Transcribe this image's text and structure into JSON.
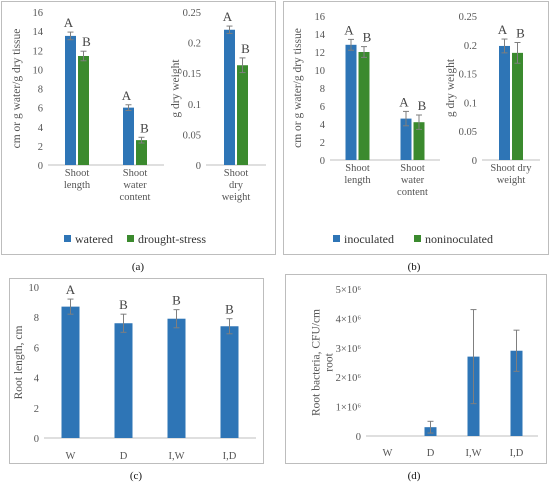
{
  "panel_labels": [
    "(a)",
    "(b)",
    "(c)",
    "(d)"
  ],
  "colors": {
    "blue": "#2e75b6",
    "green": "#3b8a2e",
    "axis": "#bfbfbf",
    "err": "#7f7f7f"
  },
  "chart_data": [
    {
      "id": "a-left",
      "type": "bar",
      "ylabel": "cm or g water/g dry tissue",
      "ylim": [
        0,
        16
      ],
      "yticks": [
        "0",
        "2",
        "4",
        "6",
        "8",
        "10",
        "12",
        "14",
        "16"
      ],
      "categories": [
        [
          "Shoot",
          "length"
        ],
        [
          "Shoot",
          "water",
          "content"
        ]
      ],
      "series": [
        {
          "name": "watered",
          "values": [
            13.5,
            6.0
          ],
          "errors": [
            0.4,
            0.3
          ],
          "letters": [
            "A",
            "A"
          ]
        },
        {
          "name": "drought-stress",
          "values": [
            11.4,
            2.6
          ],
          "errors": [
            0.5,
            0.3
          ],
          "letters": [
            "B",
            "B"
          ]
        }
      ]
    },
    {
      "id": "a-right",
      "type": "bar",
      "ylabel": "g dry weight",
      "ylim": [
        0,
        0.25
      ],
      "yticks": [
        "0",
        "0.05",
        "0.1",
        "0.15",
        "0.2",
        "0.25"
      ],
      "categories": [
        [
          "Shoot",
          "dry",
          "weight"
        ]
      ],
      "series": [
        {
          "name": "watered",
          "values": [
            0.221
          ],
          "errors": [
            0.006
          ],
          "letters": [
            "A"
          ]
        },
        {
          "name": "drought-stress",
          "values": [
            0.163
          ],
          "errors": [
            0.012
          ],
          "letters": [
            "B"
          ]
        }
      ]
    },
    {
      "id": "b-left",
      "type": "bar",
      "ylabel": "cm or g water/g dry tissue",
      "ylim": [
        0,
        16
      ],
      "yticks": [
        "0",
        "2",
        "4",
        "6",
        "8",
        "10",
        "12",
        "14",
        "16"
      ],
      "categories": [
        [
          "Shoot",
          "length"
        ],
        [
          "Shoot",
          "water",
          "content"
        ]
      ],
      "series": [
        {
          "name": "inoculated",
          "values": [
            12.8,
            4.6
          ],
          "errors": [
            0.6,
            0.8
          ],
          "letters": [
            "A",
            "A"
          ]
        },
        {
          "name": "noninoculated",
          "values": [
            12.0,
            4.2
          ],
          "errors": [
            0.6,
            0.8
          ],
          "letters": [
            "B",
            "B"
          ]
        }
      ]
    },
    {
      "id": "b-right",
      "type": "bar",
      "ylabel": "g dry weight",
      "ylim": [
        0,
        0.25
      ],
      "yticks": [
        "0",
        "0.05",
        "0.1",
        "0.15",
        "0.2",
        "0.25"
      ],
      "categories": [
        [
          "Shoot dry",
          "weight"
        ]
      ],
      "series": [
        {
          "name": "inoculated",
          "values": [
            0.198
          ],
          "errors": [
            0.012
          ],
          "letters": [
            "A"
          ]
        },
        {
          "name": "noninoculated",
          "values": [
            0.186
          ],
          "errors": [
            0.018
          ],
          "letters": [
            "B"
          ]
        }
      ]
    },
    {
      "id": "c",
      "type": "bar",
      "ylabel": "Root length, cm",
      "ylim": [
        0,
        10
      ],
      "yticks": [
        "0",
        "2",
        "4",
        "6",
        "8",
        "10"
      ],
      "categories": [
        "W",
        "D",
        "I,W",
        "I,D"
      ],
      "series": [
        {
          "values": [
            8.7,
            7.6,
            7.9,
            7.4
          ],
          "errors": [
            0.5,
            0.6,
            0.6,
            0.5
          ],
          "letters": [
            "A",
            "B",
            "B",
            "B"
          ]
        }
      ]
    },
    {
      "id": "d",
      "type": "bar",
      "ylabel": "Root bacteria, CFU/cm root",
      "ylim": [
        0,
        5000000
      ],
      "yticks": [
        "0",
        "1×10⁶",
        "2×10⁶",
        "3×10⁶",
        "4×10⁶",
        "5×10⁶"
      ],
      "categories": [
        "W",
        "D",
        "I,W",
        "I,D"
      ],
      "series": [
        {
          "values": [
            0,
            300000,
            2700000,
            2900000
          ],
          "errors": [
            0,
            200000,
            1600000,
            700000
          ]
        }
      ]
    }
  ],
  "legends": {
    "a": [
      "watered",
      "drought-stress"
    ],
    "b": [
      "inoculated",
      "noninoculated"
    ]
  }
}
